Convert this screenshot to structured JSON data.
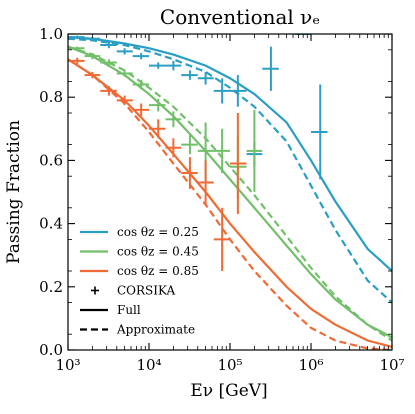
{
  "chart_data": {
    "type": "line",
    "title": "Conventional νₑ",
    "xlabel": "Eν [GeV]",
    "ylabel": "Passing Fraction",
    "xscale": "log",
    "xlim": [
      1000,
      10000000
    ],
    "ylim": [
      0.0,
      1.0
    ],
    "x_ticks": [
      {
        "value": 1000,
        "label": "10³"
      },
      {
        "value": 10000,
        "label": "10⁴"
      },
      {
        "value": 100000,
        "label": "10⁵"
      },
      {
        "value": 1000000,
        "label": "10⁶"
      },
      {
        "value": 10000000,
        "label": "10⁷"
      }
    ],
    "y_ticks": [
      {
        "value": 0.0,
        "label": "0.0"
      },
      {
        "value": 0.2,
        "label": "0.2"
      },
      {
        "value": 0.4,
        "label": "0.4"
      },
      {
        "value": 0.6,
        "label": "0.6"
      },
      {
        "value": 0.8,
        "label": "0.8"
      },
      {
        "value": 1.0,
        "label": "1.0"
      }
    ],
    "legend_position": "lower-left",
    "series": [
      {
        "name": "cos θz = 0.25",
        "color": "#2a9fc3",
        "full": {
          "x": [
            1000,
            2000,
            5000,
            10000,
            20000,
            50000,
            100000,
            200000,
            500000,
            1000000,
            2000000,
            5000000,
            10000000
          ],
          "y": [
            0.99,
            0.985,
            0.97,
            0.955,
            0.935,
            0.9,
            0.86,
            0.81,
            0.72,
            0.6,
            0.47,
            0.32,
            0.25
          ]
        },
        "approximate": {
          "x": [
            1000,
            2000,
            5000,
            10000,
            20000,
            50000,
            100000,
            200000,
            500000,
            1000000,
            2000000,
            5000000,
            10000000
          ],
          "y": [
            0.985,
            0.98,
            0.965,
            0.945,
            0.92,
            0.88,
            0.83,
            0.77,
            0.66,
            0.52,
            0.38,
            0.22,
            0.15
          ]
        },
        "corsika": [
          {
            "x": 1300,
            "y": 0.99,
            "xerr": [
              1000,
              1600
            ],
            "yerr": 0.005
          },
          {
            "x": 2000,
            "y": 0.985,
            "xerr": [
              1600,
              2500
            ],
            "yerr": 0.005
          },
          {
            "x": 3200,
            "y": 0.965,
            "xerr": [
              2500,
              4000
            ],
            "yerr": 0.01
          },
          {
            "x": 5000,
            "y": 0.945,
            "xerr": [
              4000,
              6300
            ],
            "yerr": 0.01
          },
          {
            "x": 8000,
            "y": 0.93,
            "xerr": [
              6300,
              10000
            ],
            "yerr": 0.01
          },
          {
            "x": 13000,
            "y": 0.9,
            "xerr": [
              10000,
              16000
            ],
            "yerr": 0.01
          },
          {
            "x": 20000,
            "y": 0.9,
            "xerr": [
              16000,
              25000
            ],
            "yerr": 0.015
          },
          {
            "x": 32000,
            "y": 0.87,
            "xerr": [
              25000,
              40000
            ],
            "yerr": 0.015
          },
          {
            "x": 50000,
            "y": 0.86,
            "xerr": [
              40000,
              63000
            ],
            "yerr": 0.02
          },
          {
            "x": 80000,
            "y": 0.82,
            "xerr": [
              63000,
              100000
            ],
            "yerr": 0.04
          },
          {
            "x": 125000,
            "y": 0.82,
            "xerr": [
              100000,
              160000
            ],
            "yerr": 0.05
          },
          {
            "x": 200000,
            "y": 0.62,
            "xerr": [
              160000,
              250000
            ],
            "yerr": 0.04
          },
          {
            "x": 320000,
            "y": 0.89,
            "xerr": [
              250000,
              400000
            ],
            "yerr": 0.07
          },
          {
            "x": 800000,
            "y": 1.0,
            "xerr": [
              630000,
              1000000
            ],
            "yerr": 0.0
          },
          {
            "x": 1300000,
            "y": 0.69,
            "xerr": [
              1000000,
              1600000
            ],
            "yerr": 0.15
          }
        ]
      },
      {
        "name": "cos θz = 0.45",
        "color": "#72bf6a",
        "full": {
          "x": [
            1000,
            2000,
            5000,
            10000,
            20000,
            50000,
            100000,
            200000,
            500000,
            1000000,
            2000000,
            5000000,
            10000000
          ],
          "y": [
            0.96,
            0.93,
            0.87,
            0.81,
            0.74,
            0.63,
            0.54,
            0.45,
            0.33,
            0.24,
            0.16,
            0.08,
            0.04
          ]
        },
        "approximate": {
          "x": [
            1000,
            2000,
            5000,
            10000,
            20000,
            50000,
            100000,
            200000,
            500000,
            1000000,
            2000000,
            5000000,
            10000000
          ],
          "y": [
            0.96,
            0.935,
            0.885,
            0.83,
            0.77,
            0.67,
            0.58,
            0.49,
            0.36,
            0.26,
            0.17,
            0.08,
            0.03
          ]
        },
        "corsika": [
          {
            "x": 1300,
            "y": 0.955,
            "xerr": [
              1000,
              1600
            ],
            "yerr": 0.005
          },
          {
            "x": 2000,
            "y": 0.93,
            "xerr": [
              1600,
              2500
            ],
            "yerr": 0.01
          },
          {
            "x": 3200,
            "y": 0.91,
            "xerr": [
              2500,
              4000
            ],
            "yerr": 0.01
          },
          {
            "x": 5000,
            "y": 0.875,
            "xerr": [
              4000,
              6300
            ],
            "yerr": 0.01
          },
          {
            "x": 8000,
            "y": 0.84,
            "xerr": [
              6300,
              10000
            ],
            "yerr": 0.015
          },
          {
            "x": 13000,
            "y": 0.775,
            "xerr": [
              10000,
              16000
            ],
            "yerr": 0.02
          },
          {
            "x": 20000,
            "y": 0.73,
            "xerr": [
              16000,
              25000
            ],
            "yerr": 0.025
          },
          {
            "x": 32000,
            "y": 0.65,
            "xerr": [
              25000,
              40000
            ],
            "yerr": 0.03
          },
          {
            "x": 50000,
            "y": 0.63,
            "xerr": [
              40000,
              63000
            ],
            "yerr": 0.09
          },
          {
            "x": 80000,
            "y": 0.63,
            "xerr": [
              63000,
              100000
            ],
            "yerr": 0.07
          },
          {
            "x": 125000,
            "y": 0.58,
            "xerr": [
              100000,
              160000
            ],
            "yerr": 0.1
          },
          {
            "x": 200000,
            "y": 0.63,
            "xerr": [
              160000,
              250000
            ],
            "yerr": 0.13
          }
        ]
      },
      {
        "name": "cos θz = 0.85",
        "color": "#f06a35",
        "full": {
          "x": [
            1000,
            2000,
            5000,
            10000,
            20000,
            50000,
            100000,
            200000,
            500000,
            1000000,
            2000000,
            5000000,
            10000000
          ],
          "y": [
            0.92,
            0.87,
            0.79,
            0.71,
            0.62,
            0.5,
            0.4,
            0.31,
            0.2,
            0.13,
            0.08,
            0.03,
            0.01
          ]
        },
        "approximate": {
          "x": [
            1000,
            2000,
            5000,
            10000,
            20000,
            50000,
            100000,
            200000,
            500000,
            1000000,
            2000000,
            5000000,
            10000000
          ],
          "y": [
            0.92,
            0.87,
            0.78,
            0.69,
            0.59,
            0.46,
            0.35,
            0.25,
            0.14,
            0.07,
            0.03,
            0.005,
            0.0
          ]
        },
        "corsika": [
          {
            "x": 1300,
            "y": 0.915,
            "xerr": [
              1000,
              1600
            ],
            "yerr": 0.01
          },
          {
            "x": 2000,
            "y": 0.87,
            "xerr": [
              1600,
              2500
            ],
            "yerr": 0.01
          },
          {
            "x": 3200,
            "y": 0.82,
            "xerr": [
              2500,
              4000
            ],
            "yerr": 0.015
          },
          {
            "x": 5000,
            "y": 0.79,
            "xerr": [
              4000,
              6300
            ],
            "yerr": 0.015
          },
          {
            "x": 8000,
            "y": 0.76,
            "xerr": [
              6300,
              10000
            ],
            "yerr": 0.02
          },
          {
            "x": 13000,
            "y": 0.7,
            "xerr": [
              10000,
              16000
            ],
            "yerr": 0.03
          },
          {
            "x": 20000,
            "y": 0.64,
            "xerr": [
              16000,
              25000
            ],
            "yerr": 0.03
          },
          {
            "x": 32000,
            "y": 0.56,
            "xerr": [
              25000,
              40000
            ],
            "yerr": 0.05
          },
          {
            "x": 50000,
            "y": 0.53,
            "xerr": [
              40000,
              63000
            ],
            "yerr": 0.07
          },
          {
            "x": 80000,
            "y": 0.35,
            "xerr": [
              63000,
              100000
            ],
            "yerr": 0.1
          },
          {
            "x": 125000,
            "y": 0.59,
            "xerr": [
              100000,
              160000
            ],
            "yerr": 0.16
          }
        ]
      }
    ],
    "legend": {
      "entries": [
        {
          "label": "cos θz = 0.25",
          "style": "line",
          "color": "#2a9fc3"
        },
        {
          "label": "cos θz = 0.45",
          "style": "line",
          "color": "#72bf6a"
        },
        {
          "label": "cos θz = 0.85",
          "style": "line",
          "color": "#f06a35"
        },
        {
          "label": "CORSIKA",
          "style": "cross",
          "color": "#000000"
        },
        {
          "label": "Full",
          "style": "solid",
          "color": "#000000"
        },
        {
          "label": "Approximate",
          "style": "dashed",
          "color": "#000000"
        }
      ]
    }
  }
}
